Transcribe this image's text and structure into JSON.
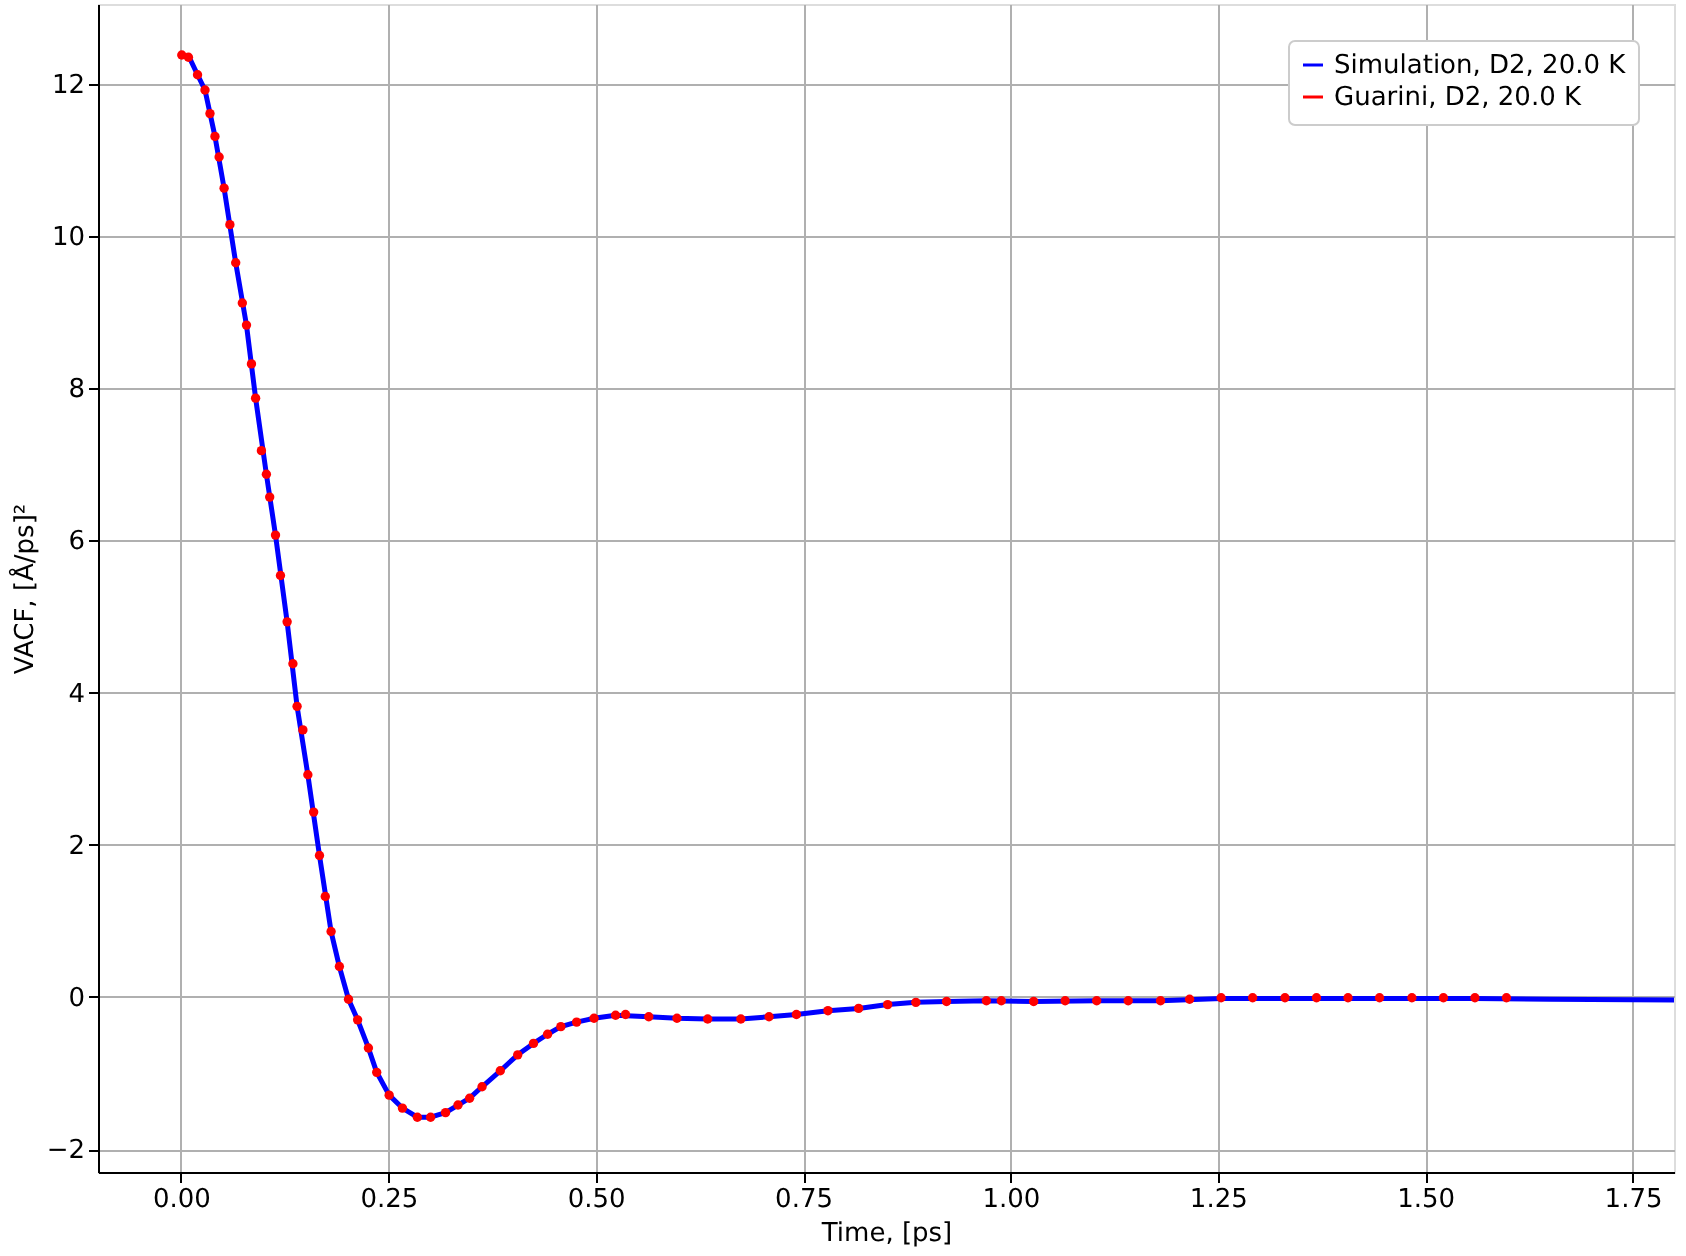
{
  "chart_data": {
    "type": "line",
    "xlabel": "Time, [ps]",
    "ylabel": "VACF, [Å/ps]²",
    "xlim": [
      -0.1,
      1.8
    ],
    "ylim": [
      -2.3,
      13.05
    ],
    "xticks": [
      {
        "value": 0,
        "label": "0.00"
      },
      {
        "value": 0.25,
        "label": "0.25"
      },
      {
        "value": 0.5,
        "label": "0.50"
      },
      {
        "value": 0.75,
        "label": "0.75"
      },
      {
        "value": 1,
        "label": "1.00"
      },
      {
        "value": 1.25,
        "label": "1.25"
      },
      {
        "value": 1.5,
        "label": "1.50"
      },
      {
        "value": 1.75,
        "label": "1.75"
      }
    ],
    "yticks": [
      -2,
      0,
      2,
      4,
      6,
      8,
      10,
      12
    ],
    "grid": true,
    "legend": "top right",
    "series": [
      {
        "name": "Simulation, D2, 20.0 K",
        "color": "#0000ff",
        "marker": "none",
        "line_style": "solid",
        "x": [
          0.0,
          0.01,
          0.02,
          0.029,
          0.041,
          0.052,
          0.066,
          0.079,
          0.09,
          0.103,
          0.114,
          0.128,
          0.14,
          0.153,
          0.167,
          0.181,
          0.191,
          0.202,
          0.213,
          0.226,
          0.236,
          0.251,
          0.267,
          0.285,
          0.301,
          0.319,
          0.334,
          0.348,
          0.363,
          0.386,
          0.406,
          0.425,
          0.442,
          0.458,
          0.477,
          0.498,
          0.524,
          0.564,
          0.598,
          0.635,
          0.675,
          0.709,
          0.742,
          0.78,
          0.817,
          0.852,
          0.886,
          0.923,
          0.971,
          1.028,
          1.104,
          1.181,
          1.254,
          1.331,
          1.407,
          1.484,
          1.56,
          1.65,
          1.8
        ],
        "values": [
          12.38,
          12.35,
          12.12,
          11.92,
          11.31,
          10.63,
          9.65,
          8.83,
          7.87,
          6.87,
          6.07,
          4.93,
          3.82,
          2.92,
          1.86,
          0.86,
          0.4,
          -0.03,
          -0.3,
          -0.67,
          -0.99,
          -1.29,
          -1.46,
          -1.58,
          -1.58,
          -1.52,
          -1.42,
          -1.33,
          -1.18,
          -0.96,
          -0.76,
          -0.61,
          -0.49,
          -0.39,
          -0.33,
          -0.28,
          -0.24,
          -0.26,
          -0.28,
          -0.29,
          -0.29,
          -0.26,
          -0.23,
          -0.18,
          -0.15,
          -0.1,
          -0.07,
          -0.06,
          -0.05,
          -0.06,
          -0.05,
          -0.05,
          -0.02,
          -0.02,
          -0.02,
          -0.02,
          -0.02,
          -0.03,
          -0.04
        ]
      },
      {
        "name": "Guarini, D2, 20.0 K",
        "color": "#ff0000",
        "type": "scatter",
        "marker": "circle",
        "x": [
          0.001,
          0.009,
          0.02,
          0.029,
          0.035,
          0.041,
          0.046,
          0.052,
          0.059,
          0.066,
          0.074,
          0.079,
          0.085,
          0.09,
          0.097,
          0.103,
          0.107,
          0.114,
          0.12,
          0.128,
          0.135,
          0.14,
          0.147,
          0.153,
          0.16,
          0.167,
          0.174,
          0.181,
          0.191,
          0.202,
          0.213,
          0.226,
          0.236,
          0.251,
          0.267,
          0.285,
          0.301,
          0.319,
          0.334,
          0.348,
          0.363,
          0.385,
          0.406,
          0.425,
          0.442,
          0.458,
          0.477,
          0.498,
          0.524,
          0.536,
          0.564,
          0.598,
          0.635,
          0.675,
          0.709,
          0.742,
          0.78,
          0.817,
          0.852,
          0.886,
          0.923,
          0.971,
          0.989,
          1.028,
          1.066,
          1.104,
          1.142,
          1.181,
          1.216,
          1.254,
          1.292,
          1.331,
          1.369,
          1.407,
          1.445,
          1.484,
          1.522,
          1.56,
          1.598
        ],
        "values": [
          12.38,
          12.35,
          12.12,
          11.92,
          11.61,
          11.31,
          11.04,
          10.63,
          10.15,
          9.65,
          9.12,
          8.83,
          8.32,
          7.87,
          7.18,
          6.87,
          6.57,
          6.07,
          5.54,
          4.93,
          4.38,
          3.82,
          3.51,
          2.92,
          2.43,
          1.86,
          1.32,
          0.86,
          0.4,
          -0.03,
          -0.3,
          -0.67,
          -0.99,
          -1.29,
          -1.46,
          -1.58,
          -1.58,
          -1.52,
          -1.42,
          -1.33,
          -1.18,
          -0.97,
          -0.76,
          -0.61,
          -0.49,
          -0.39,
          -0.33,
          -0.28,
          -0.24,
          -0.23,
          -0.26,
          -0.28,
          -0.29,
          -0.29,
          -0.26,
          -0.23,
          -0.18,
          -0.15,
          -0.1,
          -0.07,
          -0.06,
          -0.05,
          -0.05,
          -0.06,
          -0.05,
          -0.05,
          -0.05,
          -0.05,
          -0.03,
          -0.01,
          -0.01,
          -0.01,
          -0.01,
          -0.01,
          -0.01,
          -0.01,
          -0.01,
          -0.01,
          -0.01
        ]
      }
    ]
  }
}
